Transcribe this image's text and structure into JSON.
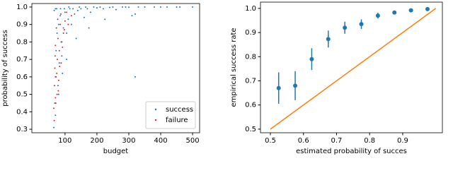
{
  "chart_data": [
    {
      "type": "scatter",
      "xlabel": "budget",
      "ylabel": "probability of success",
      "xlim": [
        -4,
        522
      ],
      "ylim": [
        0.28,
        1.02
      ],
      "xticks": [
        100,
        200,
        300,
        400,
        500
      ],
      "yticks": [
        0.3,
        0.4,
        0.5,
        0.6,
        0.7,
        0.8,
        0.9,
        {
          "value": 1,
          "label": "1.0"
        }
      ],
      "legend": "lower right",
      "series": [
        {
          "name": "success",
          "color": "#1f77b4",
          "x": [
            65,
            68,
            70,
            72,
            75,
            78,
            80,
            82,
            85,
            88,
            90,
            95,
            100,
            105,
            110,
            115,
            120,
            130,
            140,
            150,
            160,
            170,
            180,
            200,
            220,
            240,
            260,
            280,
            300,
            320,
            350,
            380,
            420,
            460,
            500,
            66,
            74,
            86,
            98,
            112,
            125,
            145,
            165,
            190,
            210,
            250,
            290,
            330,
            400,
            450,
            70,
            80,
            92,
            105,
            135,
            175,
            225,
            320,
            310,
            70
          ],
          "values": [
            0.31,
            0.45,
            0.6,
            0.75,
            0.85,
            0.55,
            0.9,
            0.68,
            0.95,
            0.8,
            0.72,
            0.88,
            0.97,
            0.85,
            0.93,
            0.99,
            0.9,
            0.96,
            0.98,
            0.99,
            0.94,
            0.99,
            0.97,
            0.995,
            0.99,
            0.998,
            0.985,
            1.0,
            0.999,
            0.96,
            1.0,
            1.0,
            1.0,
            1.0,
            1.0,
            0.98,
            0.99,
            0.99,
            0.99,
            1.0,
            0.99,
            1.0,
            1.0,
            1.0,
            1.0,
            1.0,
            1.0,
            1.0,
            1.0,
            1.0,
            0.38,
            0.5,
            0.62,
            0.7,
            0.82,
            0.88,
            0.93,
            0.6,
            0.95,
            0.99
          ]
        },
        {
          "name": "failure",
          "color": "#d62728",
          "x": [
            65,
            67,
            68,
            70,
            70,
            72,
            73,
            75,
            76,
            78,
            80,
            82,
            85,
            88,
            90,
            95,
            100,
            110,
            120,
            66,
            69,
            71,
            74,
            77,
            79,
            83,
            87,
            92,
            98,
            105
          ],
          "values": [
            0.42,
            0.55,
            0.65,
            0.48,
            0.78,
            0.6,
            0.88,
            0.5,
            0.7,
            0.82,
            0.58,
            0.75,
            0.9,
            0.68,
            0.8,
            0.85,
            0.92,
            0.9,
            0.95,
            0.35,
            0.72,
            0.45,
            0.62,
            0.93,
            0.52,
            0.66,
            0.96,
            0.77,
            0.87,
            0.97
          ]
        }
      ]
    },
    {
      "type": "errorbar",
      "xlabel": "estimated probability of succes",
      "ylabel": "empirical success rate",
      "xlim": [
        0.47,
        1.02
      ],
      "ylim": [
        0.485,
        1.026
      ],
      "xticks": [
        0.5,
        0.6,
        0.7,
        0.8,
        0.9
      ],
      "yticks": [
        0.5,
        0.6,
        0.7,
        0.8,
        0.9,
        {
          "value": 1,
          "label": "1.0"
        }
      ],
      "series": [
        {
          "type": "line",
          "color": "#ff7f0e",
          "x": [
            0.5,
            1
          ],
          "values": [
            0.5,
            1
          ]
        },
        {
          "type": "errorbar",
          "color": "#1f77b4",
          "x": [
            0.525,
            0.575,
            0.625,
            0.675,
            0.725,
            0.775,
            0.825,
            0.875,
            0.925,
            0.975
          ],
          "values": [
            0.67,
            0.68,
            0.79,
            0.873,
            0.92,
            0.935,
            0.97,
            0.983,
            0.992,
            0.997
          ],
          "errors": [
            0.065,
            0.06,
            0.045,
            0.035,
            0.025,
            0.02,
            0.012,
            0.006,
            0.004,
            0.003
          ]
        }
      ]
    }
  ]
}
